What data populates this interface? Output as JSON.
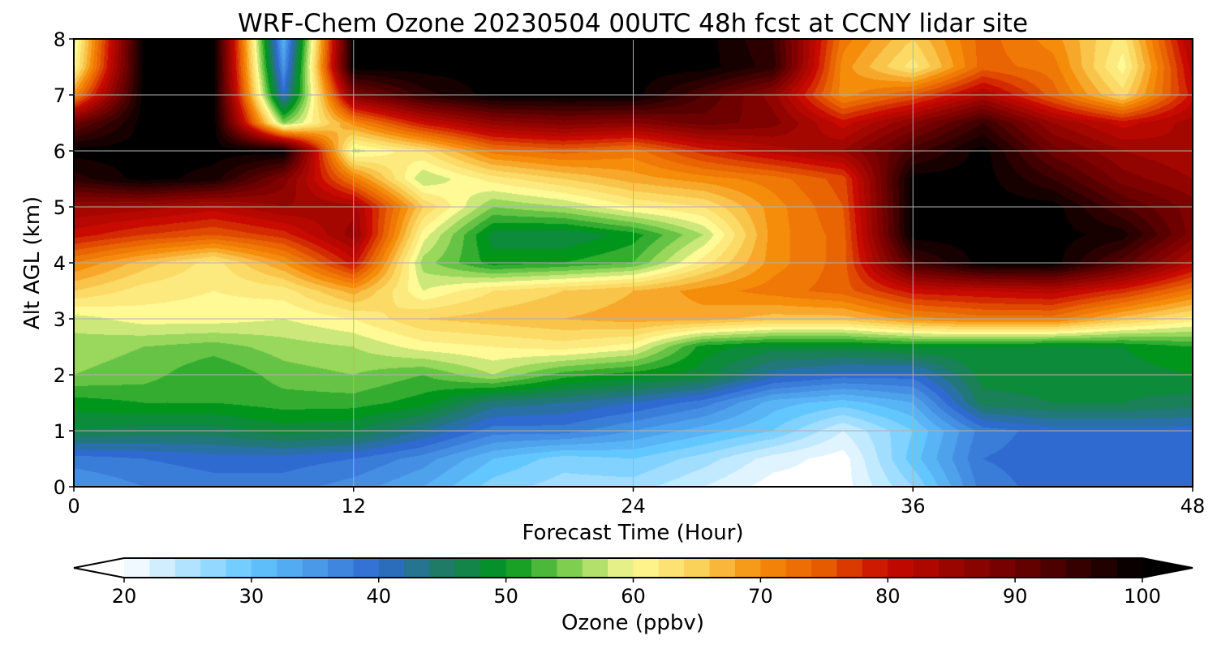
{
  "chart_data": {
    "type": "heatmap",
    "title": "WRF-Chem Ozone  20230504 00UTC 48h fcst at CCNY lidar site",
    "xlabel": "Forecast Time (Hour)",
    "ylabel": "Alt AGL (km)",
    "xlim": [
      0,
      48
    ],
    "ylim": [
      0,
      8
    ],
    "x_ticks": [
      0,
      12,
      24,
      36,
      48
    ],
    "y_ticks": [
      0,
      1,
      2,
      3,
      4,
      5,
      6,
      7,
      8
    ],
    "grid": true,
    "x": [
      0,
      3,
      6,
      9,
      12,
      15,
      18,
      21,
      24,
      27,
      30,
      33,
      36,
      39,
      42,
      45,
      48
    ],
    "y": [
      0,
      0.5,
      1,
      1.5,
      2,
      2.5,
      3,
      3.5,
      4,
      4.5,
      5,
      5.5,
      6,
      6.5,
      7,
      7.5,
      8
    ],
    "values": [
      [
        35,
        37,
        38,
        38,
        36,
        33,
        28,
        26,
        26,
        23,
        20,
        20,
        27,
        38,
        40,
        40,
        40
      ],
      [
        38,
        39,
        40,
        40,
        39,
        36,
        31,
        28,
        29,
        26,
        22,
        20,
        30,
        39,
        40,
        40,
        40
      ],
      [
        47,
        46,
        46,
        48,
        47,
        43,
        38,
        38,
        35,
        32,
        29,
        23,
        29,
        38,
        40,
        40,
        40
      ],
      [
        50,
        51,
        51,
        52,
        52,
        50,
        44,
        43,
        41,
        38,
        32,
        30,
        33,
        46,
        47,
        47,
        46
      ],
      [
        55,
        54,
        51,
        54,
        55,
        53,
        57,
        52,
        50,
        48,
        42,
        40,
        40,
        48,
        48,
        48,
        49
      ],
      [
        56,
        55,
        54,
        56,
        57,
        60,
        61,
        62,
        60,
        50,
        48,
        48,
        49,
        49,
        48,
        49,
        51
      ],
      [
        58,
        60,
        60,
        59,
        61,
        65,
        66,
        67,
        68,
        68,
        66,
        66,
        70,
        72,
        72,
        66,
        62
      ],
      [
        65,
        62,
        61,
        62,
        68,
        59,
        63,
        65,
        67,
        70,
        72,
        74,
        80,
        81,
        82,
        78,
        72
      ],
      [
        71,
        66,
        62,
        69,
        80,
        56,
        50,
        51,
        53,
        62,
        70,
        74,
        94,
        100,
        100,
        92,
        82
      ],
      [
        80,
        77,
        75,
        78,
        86,
        60,
        48,
        47,
        50,
        57,
        70,
        74,
        100,
        100,
        100,
        98,
        88
      ],
      [
        85,
        84,
        82,
        85,
        84,
        65,
        55,
        57,
        61,
        63,
        70,
        75,
        100,
        100,
        100,
        93,
        88
      ],
      [
        96,
        100,
        98,
        88,
        72,
        57,
        62,
        65,
        68,
        70,
        72,
        76,
        100,
        100,
        95,
        88,
        85
      ],
      [
        100,
        100,
        100,
        100,
        58,
        63,
        72,
        74,
        72,
        78,
        82,
        85,
        94,
        100,
        90,
        85,
        83
      ],
      [
        90,
        100,
        100,
        55,
        70,
        80,
        86,
        88,
        87,
        90,
        88,
        80,
        87,
        95,
        85,
        80,
        84
      ],
      [
        70,
        100,
        100,
        40,
        88,
        96,
        100,
        100,
        100,
        93,
        86,
        70,
        75,
        83,
        74,
        64,
        80
      ],
      [
        60,
        100,
        100,
        35,
        100,
        100,
        100,
        100,
        100,
        100,
        96,
        70,
        62,
        74,
        72,
        60,
        82
      ],
      [
        58,
        100,
        100,
        32,
        100,
        100,
        100,
        100,
        100,
        100,
        95,
        72,
        65,
        74,
        70,
        62,
        84
      ]
    ],
    "colorbar": {
      "label": "Ozone  (ppbv)",
      "ticks": [
        20,
        30,
        40,
        50,
        60,
        70,
        80,
        90,
        100
      ],
      "range": [
        20,
        100
      ],
      "extend": "both",
      "orientation": "horizontal",
      "placement": "bottom"
    },
    "colormap_stops": [
      {
        "value": 20,
        "color": "#ffffff"
      },
      {
        "value": 30,
        "color": "#63c7ff"
      },
      {
        "value": 40,
        "color": "#2f6ad0"
      },
      {
        "value": 45,
        "color": "#1f7a66"
      },
      {
        "value": 50,
        "color": "#00961c"
      },
      {
        "value": 55,
        "color": "#7fce4f"
      },
      {
        "value": 60,
        "color": "#fffa96"
      },
      {
        "value": 65,
        "color": "#fad25a"
      },
      {
        "value": 70,
        "color": "#f58c0a"
      },
      {
        "value": 75,
        "color": "#e65a00"
      },
      {
        "value": 80,
        "color": "#c80a00"
      },
      {
        "value": 90,
        "color": "#6e0000"
      },
      {
        "value": 100,
        "color": "#000000"
      }
    ],
    "colors": {
      "grid": "#b0b0b0",
      "axis": "#000000"
    }
  }
}
